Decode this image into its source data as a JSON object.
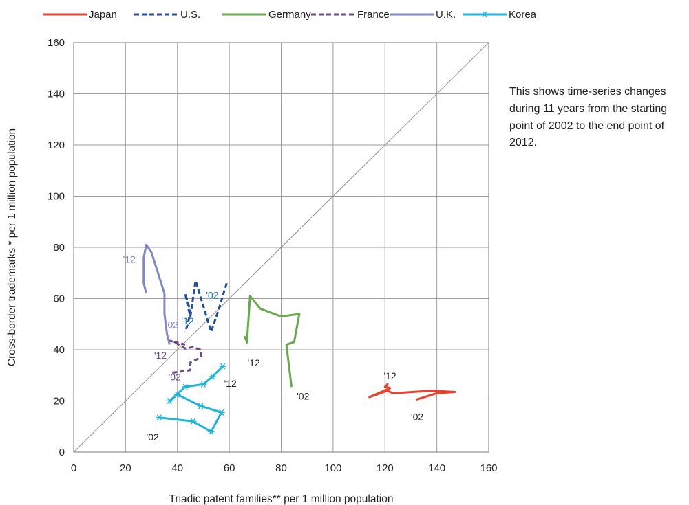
{
  "note": "This shows time-series changes during 11 years from the starting point of 2002 to the end point of 2012.",
  "chart_data": {
    "type": "line",
    "xlabel": "Triadic patent families** per 1 million population",
    "ylabel": "Cross-border trademarks * per 1 million population",
    "xlim": [
      0,
      160
    ],
    "ylim": [
      0,
      160
    ],
    "xticks": [
      "0",
      "20",
      "40",
      "60",
      "80",
      "100",
      "120",
      "140",
      "160"
    ],
    "yticks": [
      "0",
      "20",
      "40",
      "60",
      "80",
      "100",
      "120",
      "140",
      "160"
    ],
    "grid": true,
    "legend_position": "top",
    "diagonal_reference_line": true,
    "series": [
      {
        "name": "Japan",
        "color": "#e8412c",
        "dash": "solid",
        "marker": "none",
        "x": [
          132,
          140,
          147,
          138,
          123,
          121,
          114,
          122,
          120,
          121,
          121
        ],
        "y": [
          20.5,
          23,
          23.5,
          24,
          23,
          24,
          21.5,
          25,
          25.5,
          26.5,
          27
        ],
        "start_label": "'02",
        "end_label": "'12"
      },
      {
        "name": "U.S.",
        "color": "#1f4e9c",
        "dash": "dashed",
        "marker": "none",
        "x": [
          59,
          56,
          53,
          47,
          45,
          44,
          43,
          45,
          44,
          43
        ],
        "y": [
          66,
          56,
          47,
          67,
          53,
          57,
          62,
          55,
          50,
          47
        ],
        "start_label": "'02",
        "end_label": "'12"
      },
      {
        "name": "Germany",
        "color": "#6aa84f",
        "dash": "solid",
        "marker": "none",
        "x": [
          84,
          82,
          85,
          87,
          80,
          72,
          68,
          67,
          67,
          66,
          67
        ],
        "y": [
          25.5,
          42,
          43,
          54,
          53,
          56,
          61,
          46,
          43,
          45,
          42.5
        ],
        "start_label": "'02",
        "end_label": "'12"
      },
      {
        "name": "France",
        "color": "#6b4a8c",
        "dash": "dashed",
        "marker": "none",
        "x": [
          38,
          45,
          45,
          49,
          49,
          46,
          43,
          39,
          37,
          43
        ],
        "y": [
          31,
          32,
          35,
          37,
          40,
          41,
          40.5,
          43,
          43.5,
          42
        ],
        "start_label": "'02",
        "end_label": "'12"
      },
      {
        "name": "U.K.",
        "color": "#8087c2",
        "dash": "solid",
        "marker": "none",
        "x": [
          37,
          36,
          35,
          35,
          30,
          28,
          27,
          27,
          28
        ],
        "y": [
          42,
          46,
          54,
          62,
          78,
          81,
          76,
          66,
          62
        ],
        "start_label": "'02",
        "end_label": "'12"
      },
      {
        "name": "Korea",
        "color": "#1fb4d8",
        "dash": "solid",
        "marker": "asterisk",
        "x": [
          33,
          46,
          53,
          57,
          49,
          40,
          37,
          43,
          50,
          53.5,
          57.5
        ],
        "y": [
          13.5,
          12,
          8,
          15.5,
          18,
          22.5,
          20,
          25.5,
          26.5,
          29.5,
          33.5
        ],
        "start_label": "'02",
        "end_label": "'12"
      }
    ],
    "labels": [
      {
        "text": "'12",
        "x": 119.5,
        "y": 28.5,
        "color": "#222222"
      },
      {
        "text": "'02",
        "x": 130,
        "y": 12.5,
        "color": "#222222"
      },
      {
        "text": "'02",
        "x": 51,
        "y": 60,
        "color": "#1f78b4"
      },
      {
        "text": "'12",
        "x": 41.5,
        "y": 50,
        "color": "#1f78b4"
      },
      {
        "text": "'12",
        "x": 67,
        "y": 33.5,
        "color": "#222222"
      },
      {
        "text": "'02",
        "x": 86,
        "y": 20.5,
        "color": "#222222"
      },
      {
        "text": "'02",
        "x": 35.5,
        "y": 48.5,
        "color": "#8087c2"
      },
      {
        "text": "'12",
        "x": 19,
        "y": 74,
        "color": "#8087c2"
      },
      {
        "text": "'12",
        "x": 31,
        "y": 36.5,
        "color": "#6b4a8c"
      },
      {
        "text": "'02",
        "x": 36.5,
        "y": 28,
        "color": "#6b4a8c"
      },
      {
        "text": "'12",
        "x": 58,
        "y": 25.5,
        "color": "#222222"
      },
      {
        "text": "'02",
        "x": 28,
        "y": 4.5,
        "color": "#222222"
      }
    ]
  }
}
